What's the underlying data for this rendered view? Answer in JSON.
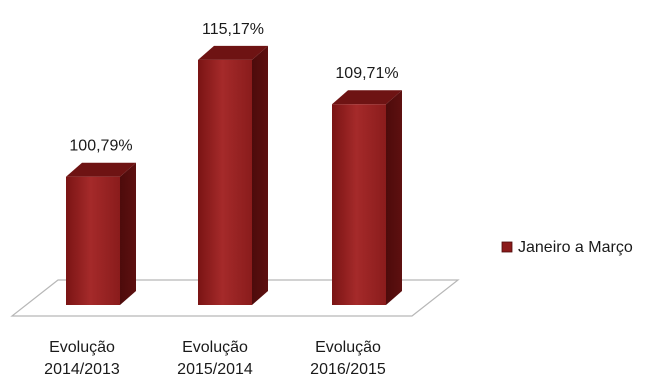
{
  "chart_data": {
    "type": "bar",
    "title": "",
    "xlabel": "",
    "ylabel": "",
    "categories": [
      [
        "Evolução",
        "2014/2013"
      ],
      [
        "Evolução",
        "2015/2014"
      ],
      [
        "Evolução",
        "2016/2015"
      ]
    ],
    "series": [
      {
        "name": "Janeiro a Março",
        "values": [
          100.79,
          115.17,
          109.71
        ],
        "data_labels": [
          "100,79%",
          "115,17%",
          "109,71%"
        ],
        "color": "#8b1a1a"
      }
    ],
    "ylim": [
      85,
      117
    ],
    "grid": false,
    "legend": "right",
    "style": "3d-column"
  }
}
